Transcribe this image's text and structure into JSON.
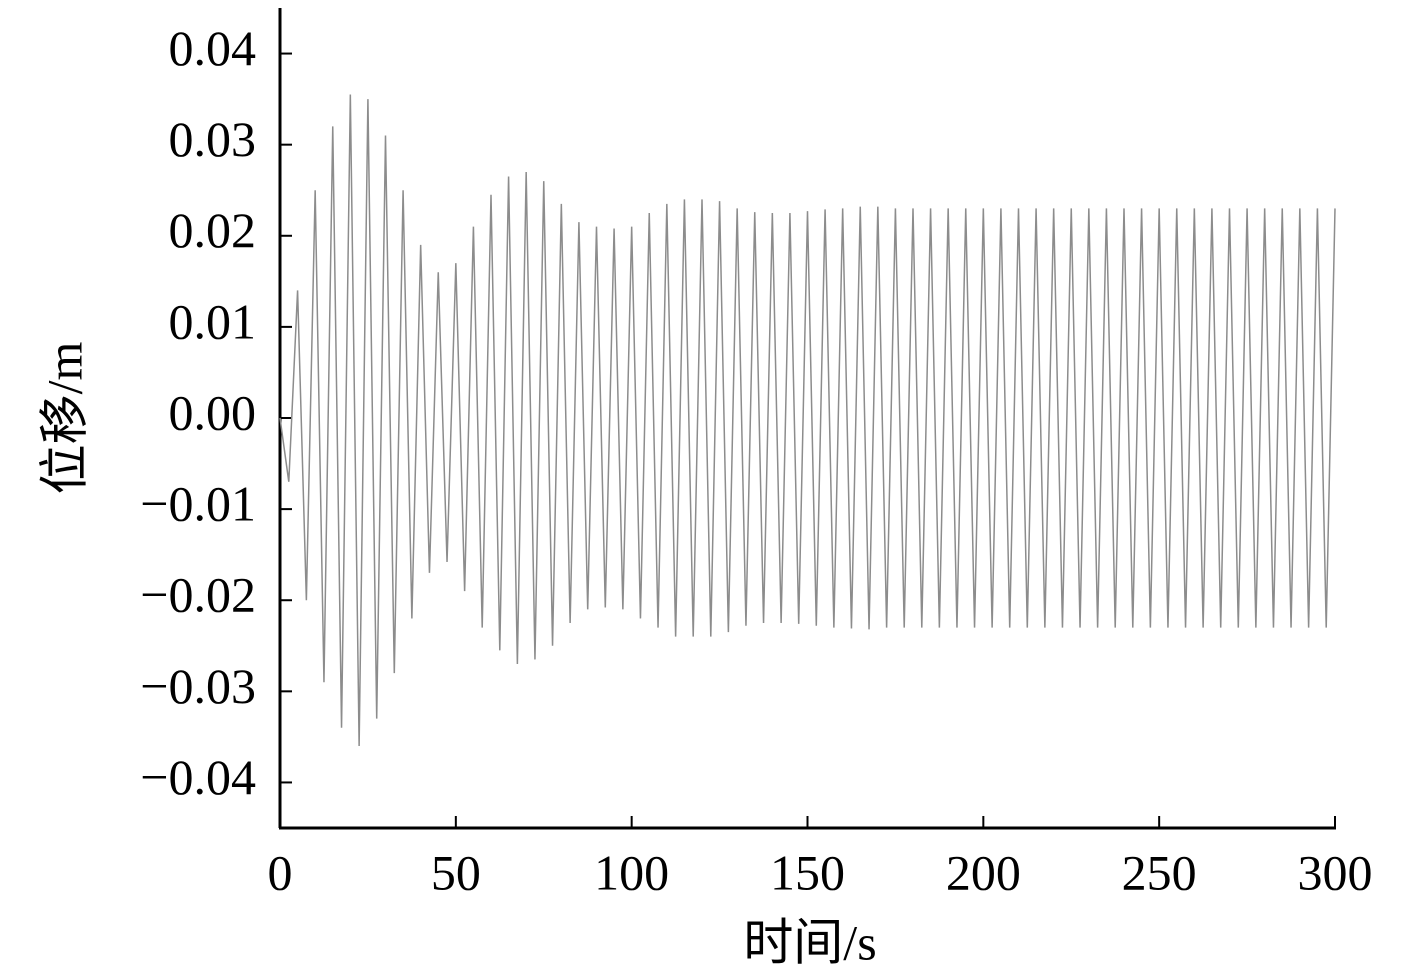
{
  "chart_data": {
    "type": "line",
    "xlabel": "时间/s",
    "ylabel": "位移/m",
    "xlim": [
      0,
      300
    ],
    "xticks": [
      0,
      50,
      100,
      150,
      200,
      250,
      300
    ],
    "ylim": [
      -0.045,
      0.045
    ],
    "yticks": [
      {
        "value": -0.04,
        "label": "−0.04"
      },
      {
        "value": -0.03,
        "label": "−0.03"
      },
      {
        "value": -0.02,
        "label": "−0.02"
      },
      {
        "value": -0.01,
        "label": "−0.01"
      },
      {
        "value": 0,
        "label": "0.00"
      },
      0.01,
      0.02,
      0.03,
      0.04
    ],
    "series": [
      {
        "color": "#8c8c8c",
        "x": [
          0,
          2.5,
          5,
          7.5,
          10,
          12.5,
          15,
          17.5,
          20,
          22.5,
          25,
          27.5,
          30,
          32.5,
          35,
          37.5,
          40,
          42.5,
          45,
          47.5,
          50,
          52.5,
          55,
          57.5,
          60,
          62.5,
          65,
          67.5,
          70,
          72.5,
          75,
          77.5,
          80,
          82.5,
          85,
          87.5,
          90,
          92.5,
          95,
          97.5,
          100,
          102.5,
          105,
          107.5,
          110,
          112.5,
          115,
          117.5,
          120,
          122.5,
          125,
          127.5,
          130,
          132.5,
          135,
          137.5,
          140,
          142.5,
          145,
          147.5,
          150,
          152.5,
          155,
          157.5,
          160,
          162.5,
          165,
          167.5,
          170,
          172.5,
          175,
          177.5,
          180,
          182.5,
          185,
          187.5,
          190,
          192.5,
          195,
          197.5,
          200,
          202.5,
          205,
          207.5,
          210,
          212.5,
          215,
          217.5,
          220,
          222.5,
          225,
          227.5,
          230,
          232.5,
          235,
          237.5,
          240,
          242.5,
          245,
          247.5,
          250,
          252.5,
          255,
          257.5,
          260,
          262.5,
          265,
          267.5,
          270,
          272.5,
          275,
          277.5,
          280,
          282.5,
          285,
          287.5,
          290,
          292.5,
          295,
          297.5,
          300
        ],
        "values": [
          0,
          -0.007,
          0.014,
          -0.02,
          0.025,
          -0.029,
          0.032,
          -0.034,
          0.0355,
          -0.036,
          0.035,
          -0.033,
          0.031,
          -0.028,
          0.025,
          -0.022,
          0.019,
          -0.017,
          0.016,
          -0.0158,
          0.017,
          -0.019,
          0.021,
          -0.023,
          0.0245,
          -0.0255,
          0.0265,
          -0.027,
          0.027,
          -0.0265,
          0.026,
          -0.025,
          0.0235,
          -0.0225,
          0.0215,
          -0.021,
          0.021,
          -0.0208,
          0.0208,
          -0.021,
          0.021,
          -0.022,
          0.0225,
          -0.023,
          0.0235,
          -0.024,
          0.024,
          -0.024,
          0.024,
          -0.024,
          0.0238,
          -0.0235,
          0.023,
          -0.0228,
          0.0226,
          -0.0225,
          0.0225,
          -0.0225,
          0.0225,
          -0.0226,
          0.0227,
          -0.0228,
          0.0229,
          -0.023,
          0.023,
          -0.0231,
          0.0232,
          -0.0232,
          0.0232,
          -0.023,
          0.023,
          -0.023,
          0.023,
          -0.023,
          0.023,
          -0.023,
          0.023,
          -0.023,
          0.023,
          -0.023,
          0.023,
          -0.023,
          0.023,
          -0.023,
          0.023,
          -0.023,
          0.023,
          -0.023,
          0.023,
          -0.023,
          0.023,
          -0.023,
          0.023,
          -0.023,
          0.023,
          -0.023,
          0.023,
          -0.023,
          0.023,
          -0.023,
          0.023,
          -0.023,
          0.023,
          -0.023,
          0.023,
          -0.023,
          0.023,
          -0.023,
          0.023,
          -0.023,
          0.023,
          -0.023,
          0.023,
          -0.023,
          0.023,
          -0.023,
          0.023,
          -0.023,
          0.023,
          -0.023,
          0.023
        ]
      }
    ]
  }
}
